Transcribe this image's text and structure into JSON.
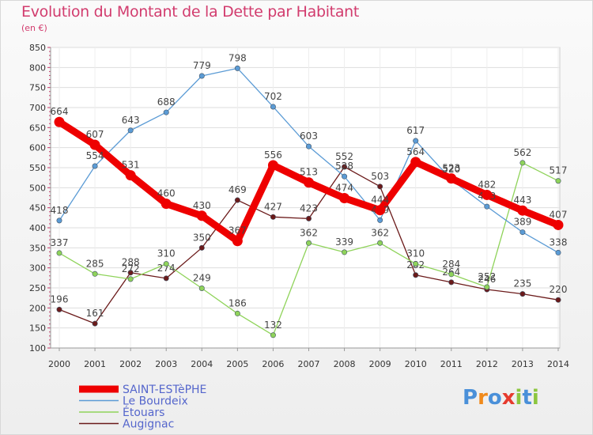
{
  "title": "Evolution du Montant de la Dette par Habitant",
  "unit": "(en €)",
  "chart_data": {
    "type": "line",
    "x": [
      "2000",
      "2001",
      "2002",
      "2003",
      "2004",
      "2005",
      "2006",
      "2007",
      "2008",
      "2009",
      "2010",
      "2011",
      "2012",
      "2013",
      "2014"
    ],
    "ylim": [
      100,
      850
    ],
    "yticks": [
      100,
      150,
      200,
      250,
      300,
      350,
      400,
      450,
      500,
      550,
      600,
      650,
      700,
      750,
      800,
      850
    ],
    "grid": true,
    "legend_placement": "bottom-left",
    "series": [
      {
        "name": "SAINT-ESTèPHE",
        "color": "#ee0000",
        "values": [
          664,
          607,
          531,
          460,
          430,
          367,
          556,
          513,
          474,
          444,
          564,
          523,
          482,
          443,
          407
        ]
      },
      {
        "name": "Le Bourdeix",
        "color": "#5b9bd5",
        "values": [
          418,
          554,
          643,
          688,
          779,
          798,
          702,
          603,
          528,
          419,
          617,
          520,
          453,
          389,
          338
        ]
      },
      {
        "name": "Étouars",
        "color": "#8fd35a",
        "values": [
          337,
          285,
          272,
          310,
          249,
          186,
          132,
          362,
          339,
          362,
          310,
          284,
          252,
          562,
          517
        ]
      },
      {
        "name": "Augignac",
        "color": "#6b1a1a",
        "values": [
          196,
          161,
          288,
          274,
          350,
          469,
          427,
          423,
          552,
          503,
          282,
          264,
          246,
          235,
          220
        ]
      }
    ]
  },
  "logo": {
    "letters": [
      "P",
      "r",
      "o",
      "x",
      "i",
      "t",
      "i"
    ],
    "colors": [
      "#4a90d9",
      "#f08a1c",
      "#4a90d9",
      "#e63b2e",
      "#8cc63f",
      "#4a90d9",
      "#8cc63f"
    ]
  }
}
